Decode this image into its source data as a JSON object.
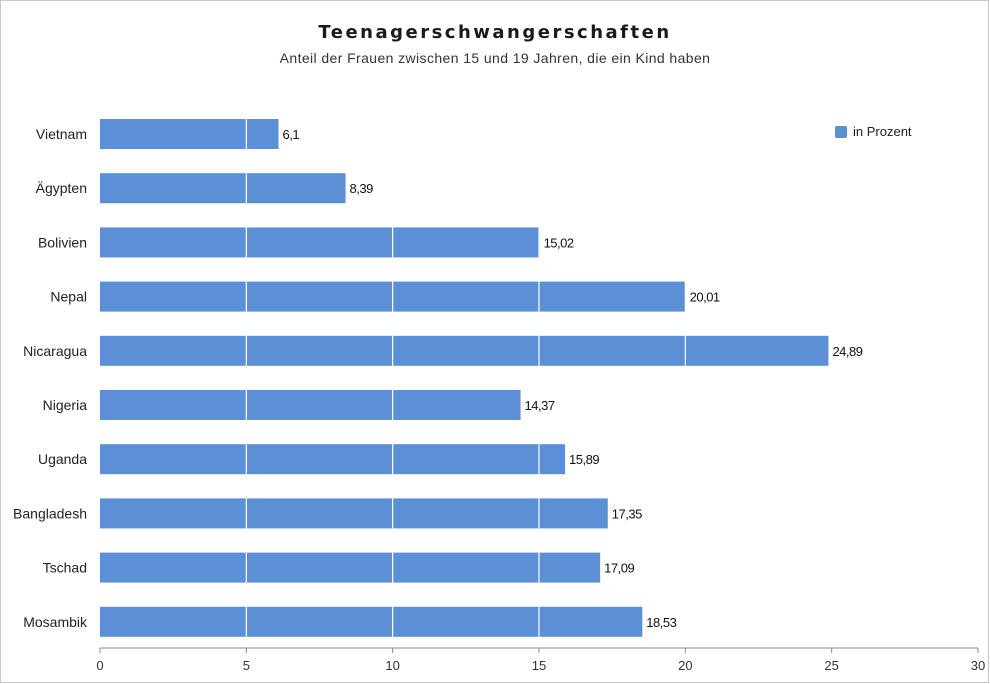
{
  "chart_data": {
    "type": "bar",
    "orientation": "horizontal",
    "title": "Teenagerschwangerschaften",
    "subtitle": "Anteil der Frauen zwischen 15 und 19 Jahren, die ein Kind haben",
    "categories": [
      "Vietnam",
      "Ägypten",
      "Bolivien",
      "Nepal",
      "Nicaragua",
      "Nigeria",
      "Uganda",
      "Bangladesh",
      "Tschad",
      "Mosambik"
    ],
    "series": [
      {
        "name": "in Prozent",
        "values": [
          6.1,
          8.39,
          15.02,
          20.01,
          24.89,
          14.37,
          15.89,
          17.35,
          17.09,
          18.53
        ],
        "labels": [
          "6,1",
          "8,39",
          "15,02",
          "20,01",
          "24,89",
          "14,37",
          "15,89",
          "17,35",
          "17,09",
          "18,53"
        ]
      }
    ],
    "xlim": [
      0,
      30
    ],
    "xticks": [
      0,
      5,
      10,
      15,
      20,
      25,
      30
    ],
    "xlabel": "",
    "ylabel": "",
    "grid": true,
    "legend_position": "top-right",
    "colors": {
      "bar": "#5b8fd6",
      "grid": "#ffffff",
      "axis": "#888888"
    }
  }
}
